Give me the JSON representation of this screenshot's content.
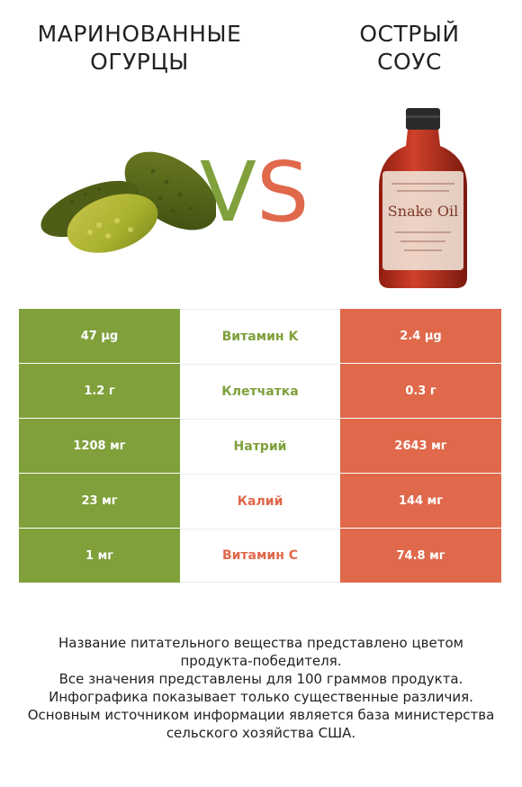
{
  "header": {
    "left_title_line1": "МАРИНОВАННЫЕ",
    "left_title_line2": "ОГУРЦЫ",
    "right_title_line1": "ОСТРЫЙ",
    "right_title_line2": "СОУС",
    "vs_v": "V",
    "vs_s": "S"
  },
  "colors": {
    "left_winner": "#7fa03b",
    "right_winner": "#e0684b"
  },
  "rows": [
    {
      "left": "47 µg",
      "nutrient": "Витамин K",
      "right": "2.4 µg",
      "winner": "left"
    },
    {
      "left": "1.2 г",
      "nutrient": "Клетчатка",
      "right": "0.3 г",
      "winner": "left"
    },
    {
      "left": "1208 мг",
      "nutrient": "Натрий",
      "right": "2643 мг",
      "winner": "left"
    },
    {
      "left": "23 мг",
      "nutrient": "Калий",
      "right": "144 мг",
      "winner": "right"
    },
    {
      "left": "1 мг",
      "nutrient": "Витамин C",
      "right": "74.8 мг",
      "winner": "right"
    }
  ],
  "footer": {
    "line1": "Название питательного вещества представлено цветом",
    "line2": "продукта-победителя.",
    "line3": "Все значения представлены для 100 граммов продукта.",
    "line4": "Инфографика показывает только существенные различия.",
    "line5": "Основным источником информации является база министерства",
    "line6": "сельского хозяйства США."
  },
  "images": {
    "left": "pickles-image",
    "right": "hot-sauce-bottle-image",
    "bottle_label_text": "Snake Oil"
  }
}
